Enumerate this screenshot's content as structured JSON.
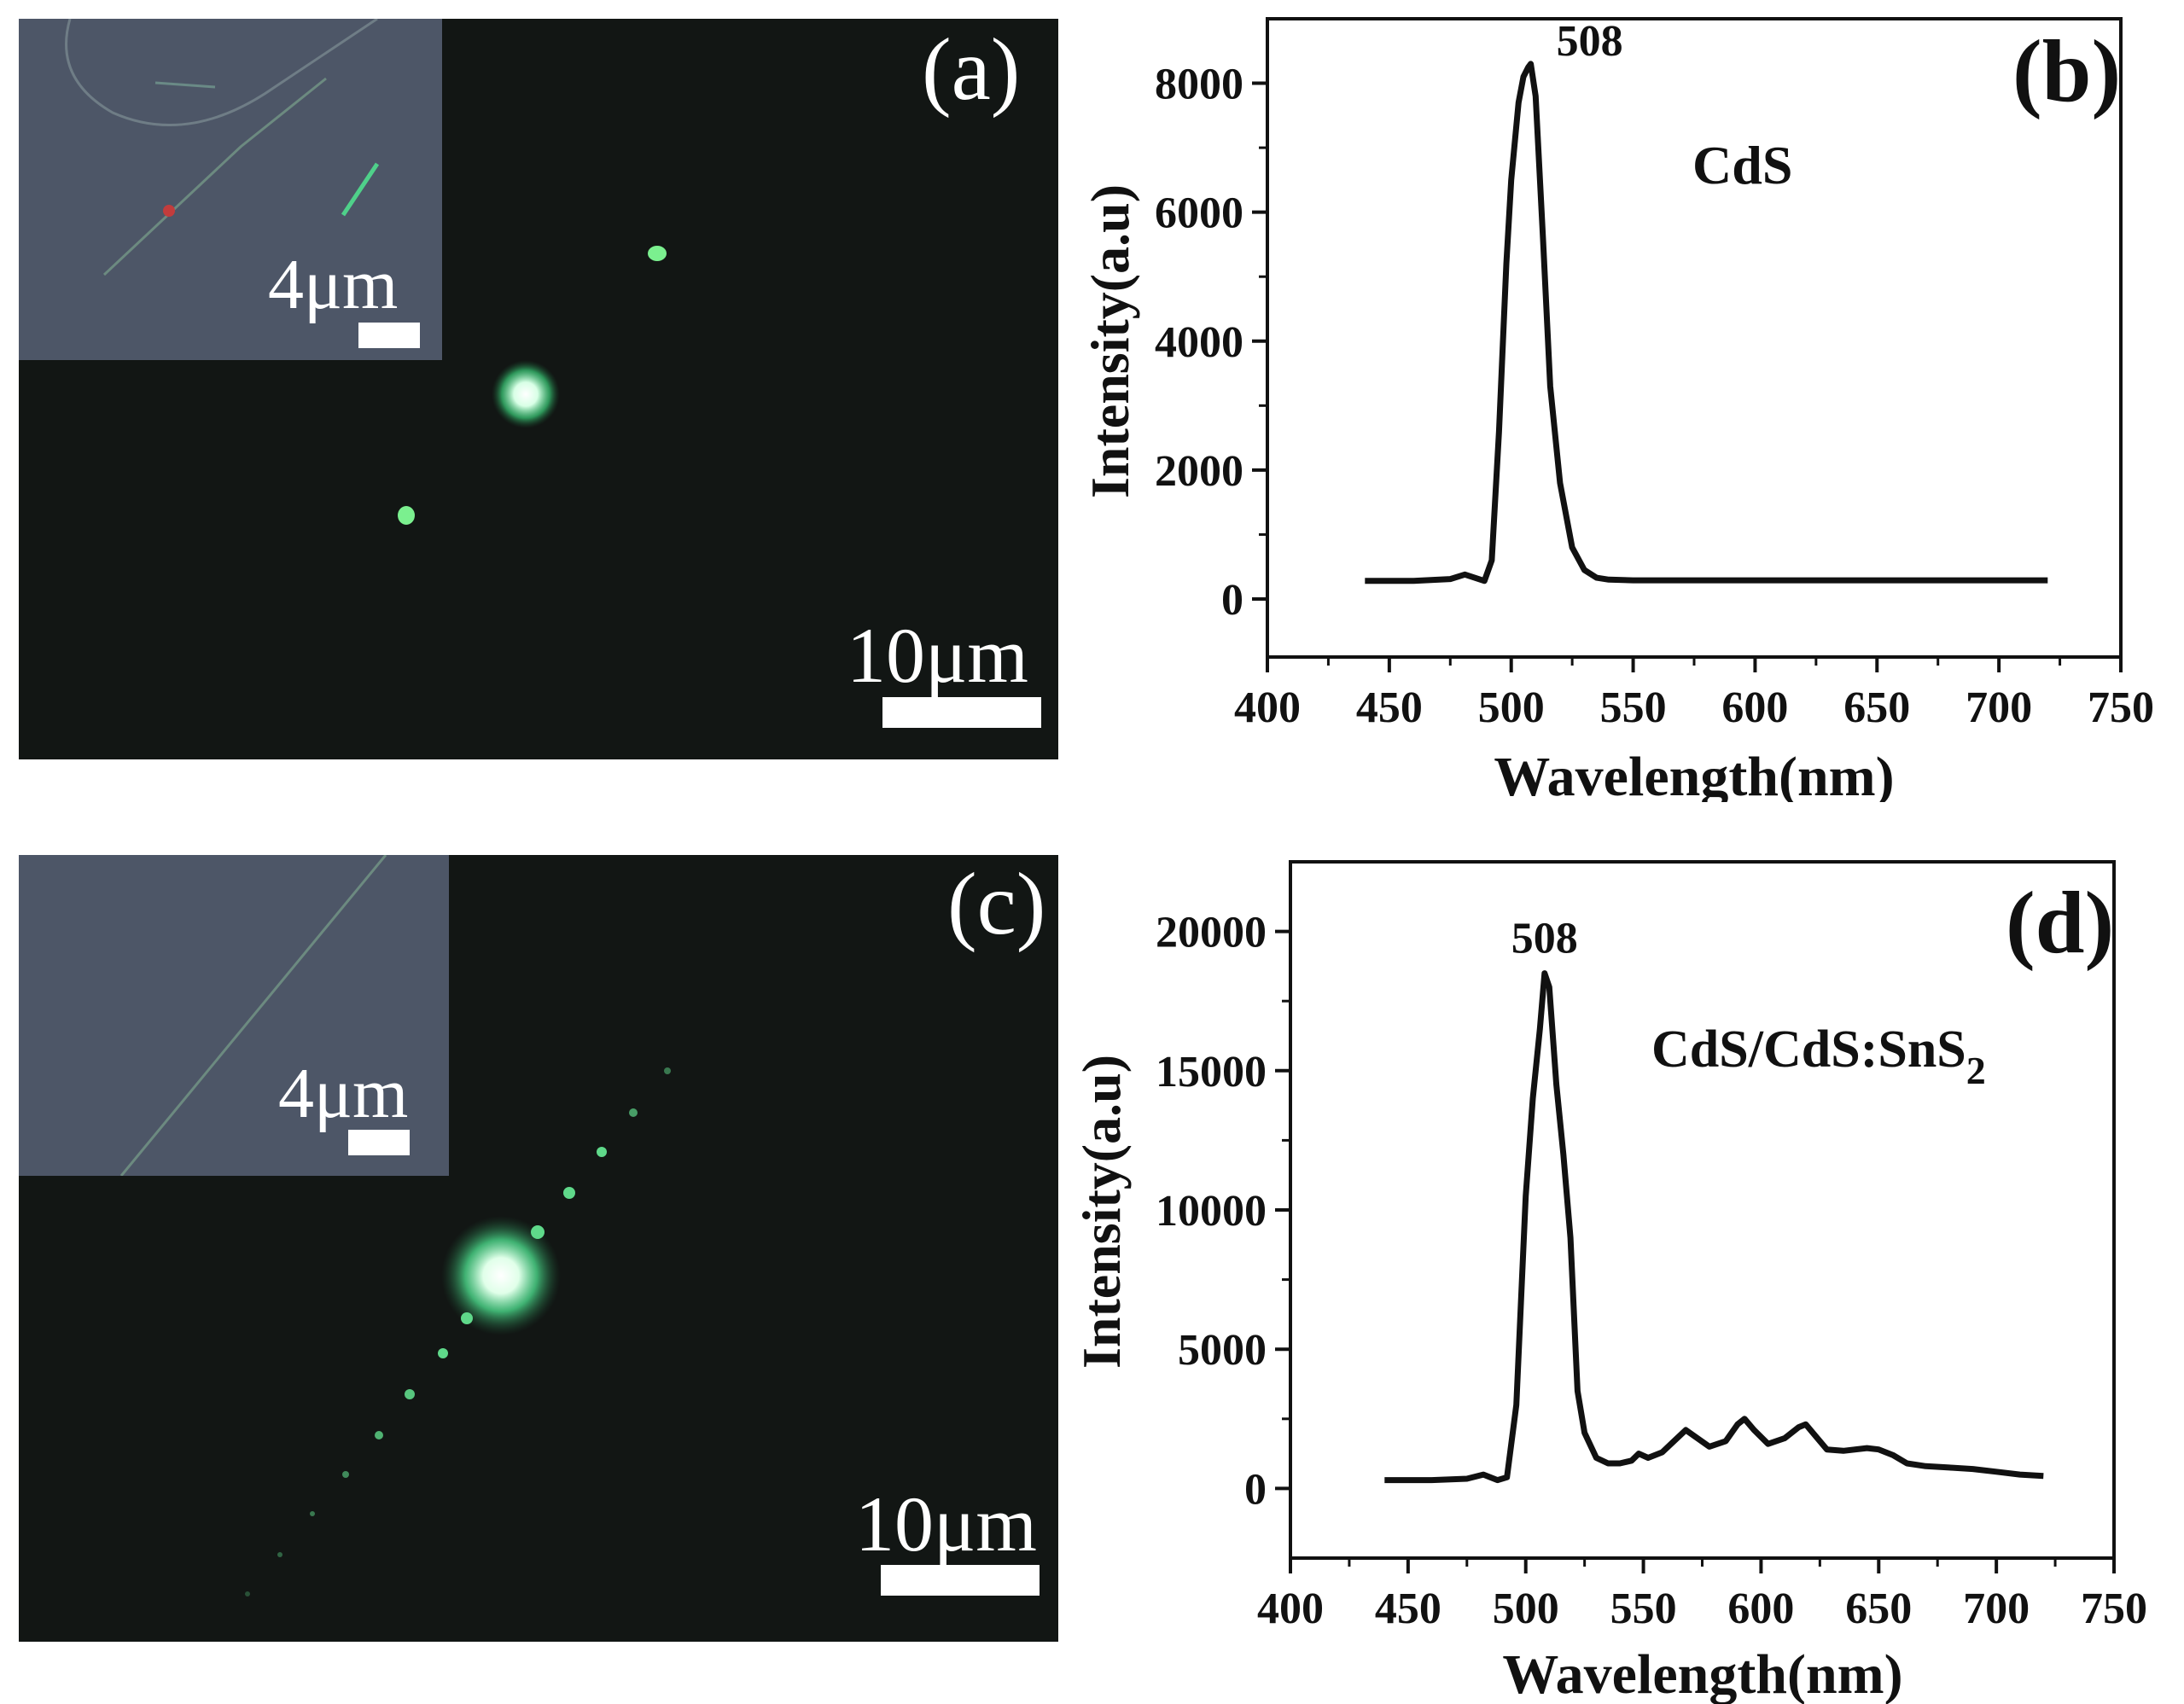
{
  "panels": {
    "a": {
      "letter": "(a)",
      "inset_scale": "4μm",
      "scale": "10μm"
    },
    "c": {
      "letter": "(c)",
      "inset_scale": "4μm",
      "scale": "10μm"
    }
  },
  "chart_data": [
    {
      "type": "line",
      "panel_label": "(b)",
      "annotation": "CdS",
      "peak_label": "508",
      "xlabel": "Wavelength(nm)",
      "ylabel": "Intensity(a.u)",
      "xlim": [
        400,
        750
      ],
      "ylim": [
        -900,
        9000
      ],
      "xticks": [
        400,
        450,
        500,
        550,
        600,
        650,
        700,
        750
      ],
      "yticks": [
        0,
        2000,
        4000,
        6000,
        8000
      ],
      "series": [
        {
          "x": [
            440,
            460,
            475,
            481,
            485,
            489,
            492,
            495,
            498,
            500,
            503,
            505,
            507,
            508,
            510,
            513,
            516,
            520,
            525,
            530,
            535,
            540,
            550,
            580,
            620,
            660,
            700,
            720
          ],
          "y": [
            280,
            280,
            310,
            380,
            330,
            280,
            600,
            2600,
            5200,
            6500,
            7700,
            8100,
            8250,
            8300,
            7800,
            5600,
            3300,
            1800,
            800,
            450,
            330,
            300,
            290,
            290,
            290,
            290,
            290,
            290
          ]
        }
      ]
    },
    {
      "type": "line",
      "panel_label": "(d)",
      "annotation": "CdS/CdS:SnS",
      "annotation_sub": "2",
      "peak_label": "508",
      "xlabel": "Wavelength(nm)",
      "ylabel": "Intensity(a.u)",
      "xlim": [
        400,
        750
      ],
      "ylim": [
        -2500,
        22500
      ],
      "xticks": [
        400,
        450,
        500,
        550,
        600,
        650,
        700,
        750
      ],
      "yticks": [
        0,
        5000,
        10000,
        15000,
        20000
      ],
      "series": [
        {
          "x": [
            440,
            460,
            475,
            482,
            488,
            492,
            496,
            500,
            503,
            506,
            508,
            510,
            513,
            516,
            519,
            522,
            525,
            530,
            535,
            540,
            545,
            548,
            552,
            558,
            563,
            568,
            573,
            578,
            585,
            590,
            593,
            597,
            603,
            610,
            616,
            619,
            623,
            628,
            635,
            645,
            650,
            656,
            662,
            670,
            680,
            690,
            700,
            710,
            720
          ],
          "y": [
            300,
            300,
            350,
            500,
            300,
            400,
            3000,
            10500,
            14000,
            16500,
            18500,
            18000,
            14500,
            12000,
            9000,
            3500,
            2000,
            1100,
            900,
            900,
            1000,
            1250,
            1100,
            1300,
            1700,
            2100,
            1800,
            1500,
            1700,
            2300,
            2500,
            2100,
            1600,
            1800,
            2200,
            2300,
            1900,
            1400,
            1350,
            1450,
            1400,
            1200,
            900,
            800,
            750,
            700,
            600,
            500,
            450
          ]
        }
      ]
    }
  ]
}
